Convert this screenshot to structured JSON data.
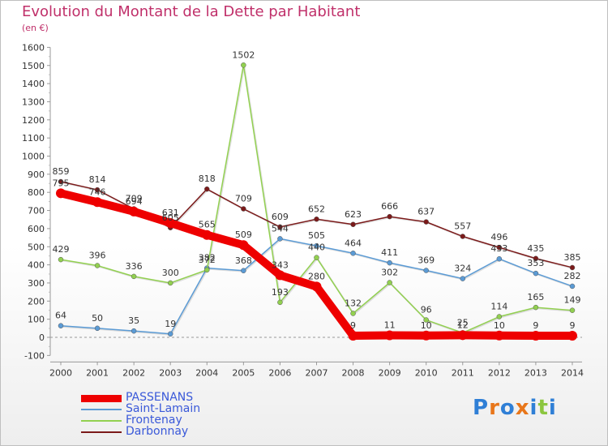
{
  "title": "Evolution du Montant de la Dette par Habitant",
  "subtitle": "(en €)",
  "brand": {
    "name": "Proxiti",
    "letters": [
      "P",
      "r",
      "o",
      "x",
      "i",
      "t",
      "i"
    ],
    "colors": [
      "#2f7fd6",
      "#e8761a",
      "#2f7fd6",
      "#e8761a",
      "#2f7fd6",
      "#8cc63f",
      "#2f7fd6"
    ]
  },
  "chart_data": {
    "type": "line",
    "x": [
      "2000",
      "2001",
      "2002",
      "2003",
      "2004",
      "2005",
      "2006",
      "2007",
      "2008",
      "2009",
      "2010",
      "2011",
      "2012",
      "2013",
      "2014"
    ],
    "ylim": [
      -100,
      1600
    ],
    "yticks": [
      "-100",
      "0",
      "100",
      "200",
      "300",
      "400",
      "500",
      "600",
      "700",
      "800",
      "900",
      "1000",
      "1100",
      "1200",
      "1300",
      "1400",
      "1500",
      "1600"
    ],
    "grid": false,
    "legend_position": "bottom-left",
    "series": [
      {
        "name": "PASSENANS",
        "color": "#ee0000",
        "values": [
          795,
          746,
          694,
          631,
          565,
          509,
          343,
          280,
          9,
          11,
          10,
          12,
          10,
          9,
          9
        ],
        "label_values": [
          "795",
          "746",
          "694",
          "631",
          "565",
          "509",
          "343",
          "280",
          "9",
          "11",
          "10",
          "12",
          "10",
          "9",
          "9"
        ]
      },
      {
        "name": "Saint-Lamain",
        "color": "#5b9bd5",
        "values": [
          64,
          50,
          35,
          19,
          382,
          368,
          544,
          505,
          464,
          411,
          369,
          324,
          433,
          353,
          282
        ],
        "label_values": [
          "64",
          "50",
          "35",
          "19",
          "382",
          "368",
          "544",
          "505",
          "464",
          "411",
          "369",
          "324",
          "433",
          "353",
          "282"
        ]
      },
      {
        "name": "Frontenay",
        "color": "#92d050",
        "values": [
          429,
          396,
          336,
          300,
          372,
          1502,
          193,
          440,
          132,
          302,
          96,
          25,
          114,
          165,
          149
        ],
        "label_values": [
          "429",
          "396",
          "336",
          "300",
          "372",
          "1502",
          "193",
          "440",
          "132",
          "302",
          "96",
          "25",
          "114",
          "165",
          "149"
        ]
      },
      {
        "name": "Darbonnay",
        "color": "#7b1a1a",
        "values": [
          859,
          814,
          709,
          605,
          818,
          709,
          609,
          652,
          623,
          666,
          637,
          557,
          496,
          435,
          385
        ],
        "label_values": [
          "859",
          "814",
          "709",
          "605",
          "818",
          "709",
          "609",
          "652",
          "623",
          "666",
          "637",
          "557",
          "496",
          "435",
          "385"
        ]
      }
    ]
  }
}
